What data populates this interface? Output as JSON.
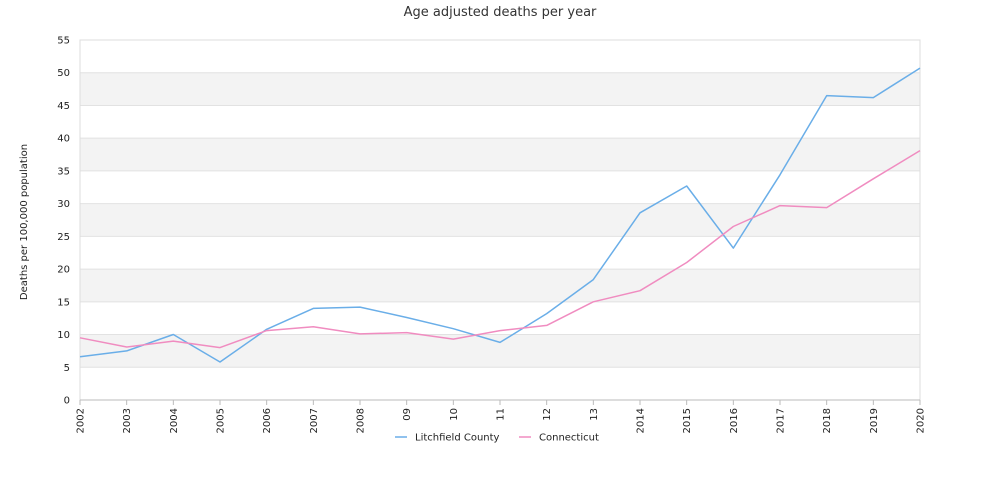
{
  "chart_data": {
    "type": "line",
    "title": "Age adjusted deaths per year",
    "ylabel": "Deaths per 100,000 population",
    "xlabel": "",
    "ylim": [
      0,
      55
    ],
    "yticks": [
      0,
      5,
      10,
      15,
      20,
      25,
      30,
      35,
      40,
      45,
      50,
      55
    ],
    "categories": [
      "2002",
      "2003",
      "2004",
      "2005",
      "2006",
      "2007",
      "2008",
      "09",
      "10",
      "11",
      "12",
      "13",
      "2014",
      "2015",
      "2016",
      "2017",
      "2018",
      "2019",
      "2020"
    ],
    "grid": "horizontal alternating bands",
    "legend_position": "bottom-center",
    "series": [
      {
        "name": "Litchfield County",
        "color": "#6aaee8",
        "values": [
          6.6,
          7.5,
          10.0,
          5.8,
          10.8,
          14.0,
          14.2,
          12.6,
          10.9,
          8.8,
          13.2,
          18.4,
          28.6,
          32.7,
          23.2,
          34.4,
          46.5,
          46.2,
          50.7
        ]
      },
      {
        "name": "Connecticut",
        "color": "#f08cc0",
        "values": [
          9.5,
          8.1,
          9.0,
          8.0,
          10.6,
          11.2,
          10.1,
          10.3,
          9.3,
          10.6,
          11.4,
          15.0,
          16.7,
          21.0,
          26.5,
          29.7,
          29.4,
          33.8,
          38.1
        ]
      }
    ]
  }
}
